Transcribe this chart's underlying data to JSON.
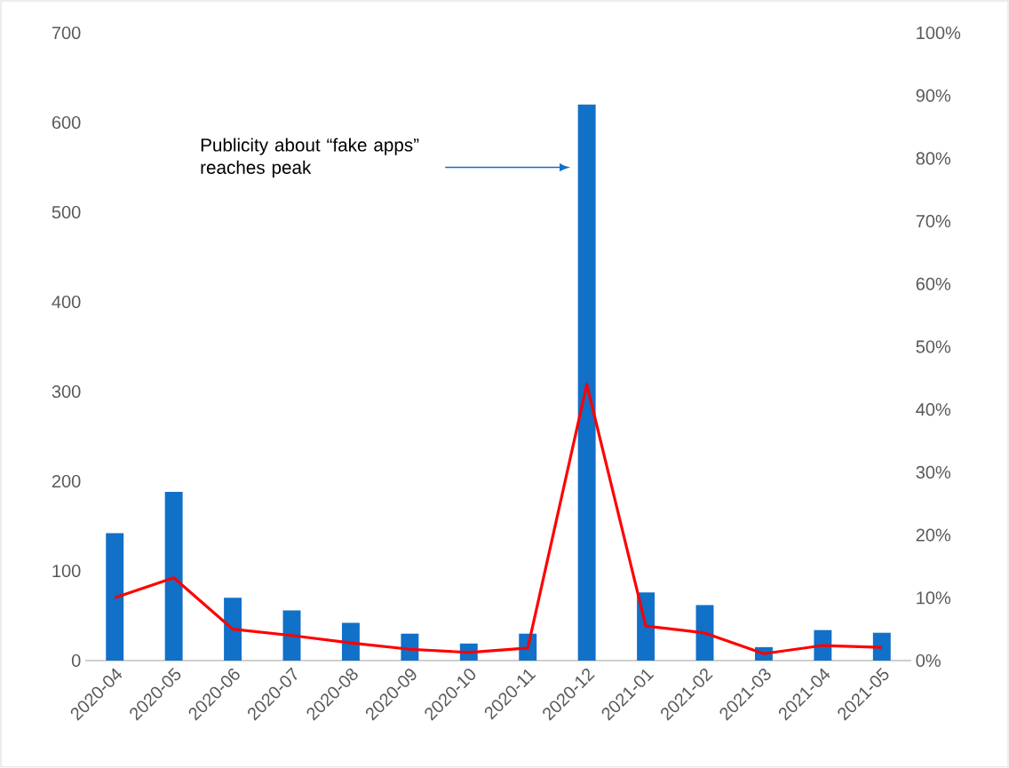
{
  "chart_data": {
    "type": "bar",
    "categories": [
      "2020-04",
      "2020-05",
      "2020-06",
      "2020-07",
      "2020-08",
      "2020-09",
      "2020-10",
      "2020-11",
      "2020-12",
      "2021-01",
      "2021-02",
      "2021-03",
      "2021-04",
      "2021-05"
    ],
    "series": [
      {
        "color": "#1170c8",
        "values": [
          142,
          188,
          70,
          56,
          42,
          30,
          19,
          30,
          620,
          76,
          62,
          15,
          34,
          31
        ]
      },
      {
        "type": "line",
        "axis": "y2",
        "color": "#ff0000",
        "values": [
          10.0,
          13.2,
          5.0,
          4.0,
          2.8,
          1.8,
          1.3,
          2.0,
          44.0,
          5.5,
          4.4,
          1.1,
          2.4,
          2.1
        ]
      }
    ],
    "ylim": [
      0,
      700
    ],
    "yticks": [
      0,
      100,
      200,
      300,
      400,
      500,
      600,
      700
    ],
    "y2lim": [
      0,
      100
    ],
    "y2ticks": [
      {
        "value": 0,
        "label": "0%"
      },
      {
        "value": 10,
        "label": "10%"
      },
      {
        "value": 20,
        "label": "20%"
      },
      {
        "value": 30,
        "label": "30%"
      },
      {
        "value": 40,
        "label": "40%"
      },
      {
        "value": 50,
        "label": "50%"
      },
      {
        "value": 60,
        "label": "60%"
      },
      {
        "value": 70,
        "label": "70%"
      },
      {
        "value": 80,
        "label": "80%"
      },
      {
        "value": 90,
        "label": "90%"
      },
      {
        "value": 100,
        "label": "100%"
      }
    ],
    "annotations": [
      "Publicity about “fake apps” reaches peak"
    ]
  }
}
